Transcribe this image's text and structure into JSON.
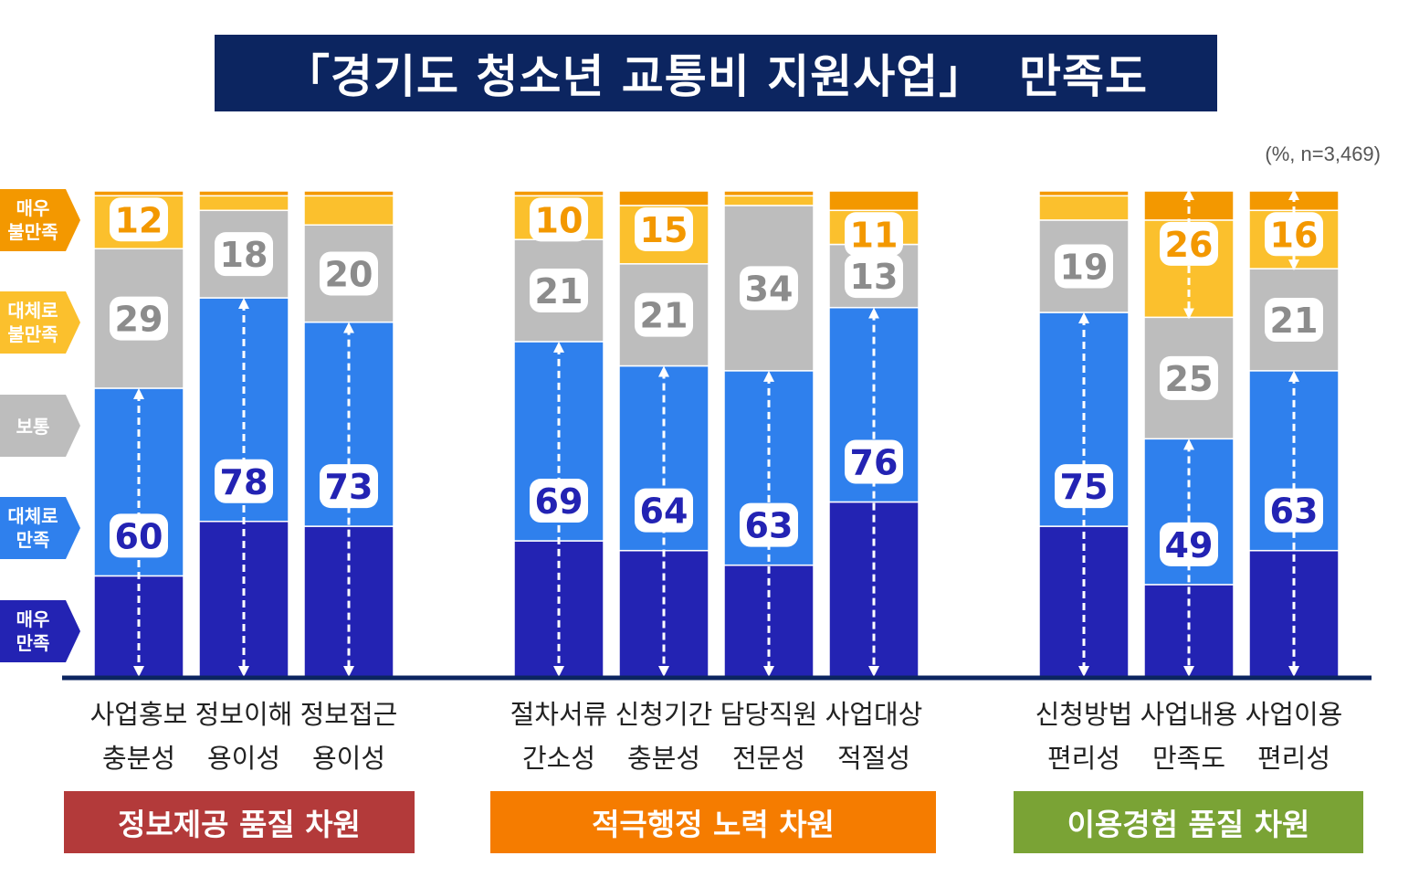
{
  "title": "「경기도 청소년 교통비 지원사업」  만족도",
  "unit_note": "(%, n=3,469)",
  "legend": [
    {
      "label": "매우\n불만족",
      "color": "#F39800"
    },
    {
      "label": "대체로\n불만족",
      "color": "#FBC02D"
    },
    {
      "label": "보통",
      "color": "#BDBDBD"
    },
    {
      "label": "대체로\n만족",
      "color": "#2F80ED"
    },
    {
      "label": "매우\n만족",
      "color": "#2323B3"
    }
  ],
  "groups": [
    {
      "label": "정보제공 품질 차원",
      "color": "#B33A3A"
    },
    {
      "label": "적극행정 노력 차원",
      "color": "#F57C00"
    },
    {
      "label": "이용경험 품질 차원",
      "color": "#7AA335"
    }
  ],
  "chart_data": {
    "type": "bar",
    "stacked": true,
    "unit": "%",
    "n": "3,469",
    "categories": [
      {
        "line1": "사업홍보",
        "line2": "충분성",
        "group": 0
      },
      {
        "line1": "정보이해",
        "line2": "용이성",
        "group": 0
      },
      {
        "line1": "정보접근",
        "line2": "용이성",
        "group": 0
      },
      {
        "line1": "절차서류",
        "line2": "간소성",
        "group": 1
      },
      {
        "line1": "신청기간",
        "line2": "충분성",
        "group": 1
      },
      {
        "line1": "담당직원",
        "line2": "전문성",
        "group": 1
      },
      {
        "line1": "사업대상",
        "line2": "적절성",
        "group": 1
      },
      {
        "line1": "신청방법",
        "line2": "편리성",
        "group": 2
      },
      {
        "line1": "사업내용",
        "line2": "만족도",
        "group": 2
      },
      {
        "line1": "사업이용",
        "line2": "편리성",
        "group": 2
      }
    ],
    "series": [
      {
        "name": "매우 만족",
        "values": [
          21,
          32,
          31,
          28,
          26,
          23,
          36,
          31,
          19,
          26
        ]
      },
      {
        "name": "대체로 만족",
        "values": [
          39,
          46,
          42,
          41,
          38,
          40,
          40,
          44,
          30,
          37
        ]
      },
      {
        "name": "보통",
        "values": [
          29,
          18,
          20,
          21,
          21,
          34,
          13,
          19,
          25,
          21
        ]
      },
      {
        "name": "대체로 불만족",
        "values": [
          11,
          3,
          6,
          9,
          12,
          2,
          7,
          5,
          20,
          12
        ]
      },
      {
        "name": "매우 불만족",
        "values": [
          1,
          1,
          1,
          1,
          3,
          1,
          4,
          1,
          6,
          4
        ]
      }
    ],
    "labels": {
      "satisfied": [
        "60",
        "78",
        "73",
        "69",
        "64",
        "63",
        "76",
        "75",
        "49",
        "63"
      ],
      "neutral": [
        "29",
        "18",
        "20",
        "21",
        "21",
        "34",
        "13",
        "19",
        "25",
        "21"
      ],
      "dissatisfied": [
        "12",
        "",
        "",
        "10",
        "15",
        "",
        "11",
        "",
        "26",
        "16"
      ]
    },
    "ylim": [
      0,
      100
    ]
  }
}
